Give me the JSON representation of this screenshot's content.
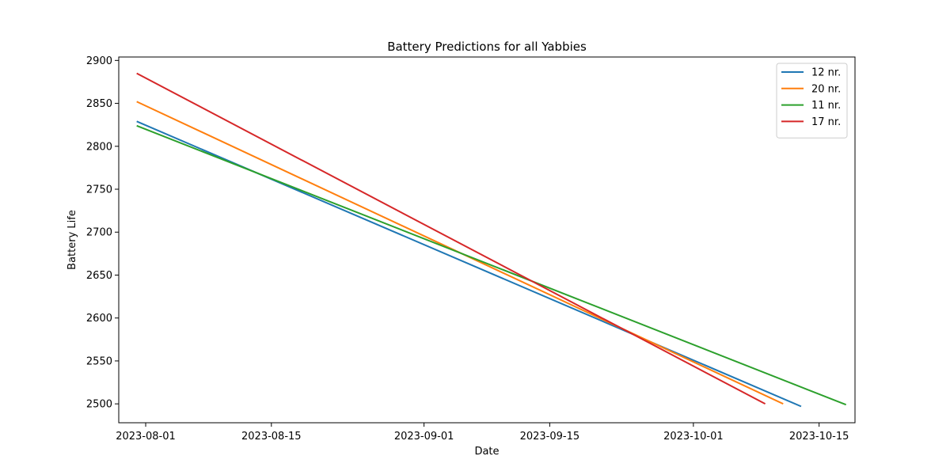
{
  "chart_data": {
    "type": "line",
    "title": "Battery Predictions for all Yabbies",
    "xlabel": "Date",
    "ylabel": "Battery Life",
    "x_type": "date",
    "xlim": [
      "2023-07-29",
      "2023-10-19"
    ],
    "ylim": [
      2478,
      2904
    ],
    "x_ticks": [
      "2023-08-01",
      "2023-08-15",
      "2023-09-01",
      "2023-09-15",
      "2023-10-01",
      "2023-10-15"
    ],
    "y_ticks": [
      2500,
      2550,
      2600,
      2650,
      2700,
      2750,
      2800,
      2850,
      2900
    ],
    "grid": false,
    "legend_position": "top-right",
    "series": [
      {
        "name": "12 nr.",
        "color": "#1f77b4",
        "x": [
          "2023-07-31",
          "2023-10-13"
        ],
        "y": [
          2829,
          2497
        ]
      },
      {
        "name": "20 nr.",
        "color": "#ff7f0e",
        "x": [
          "2023-07-31",
          "2023-10-11"
        ],
        "y": [
          2852,
          2500
        ]
      },
      {
        "name": "11 nr.",
        "color": "#2ca02c",
        "x": [
          "2023-07-31",
          "2023-10-18"
        ],
        "y": [
          2824,
          2499
        ]
      },
      {
        "name": "17 nr.",
        "color": "#d62728",
        "x": [
          "2023-07-31",
          "2023-10-09"
        ],
        "y": [
          2885,
          2500
        ]
      }
    ]
  }
}
